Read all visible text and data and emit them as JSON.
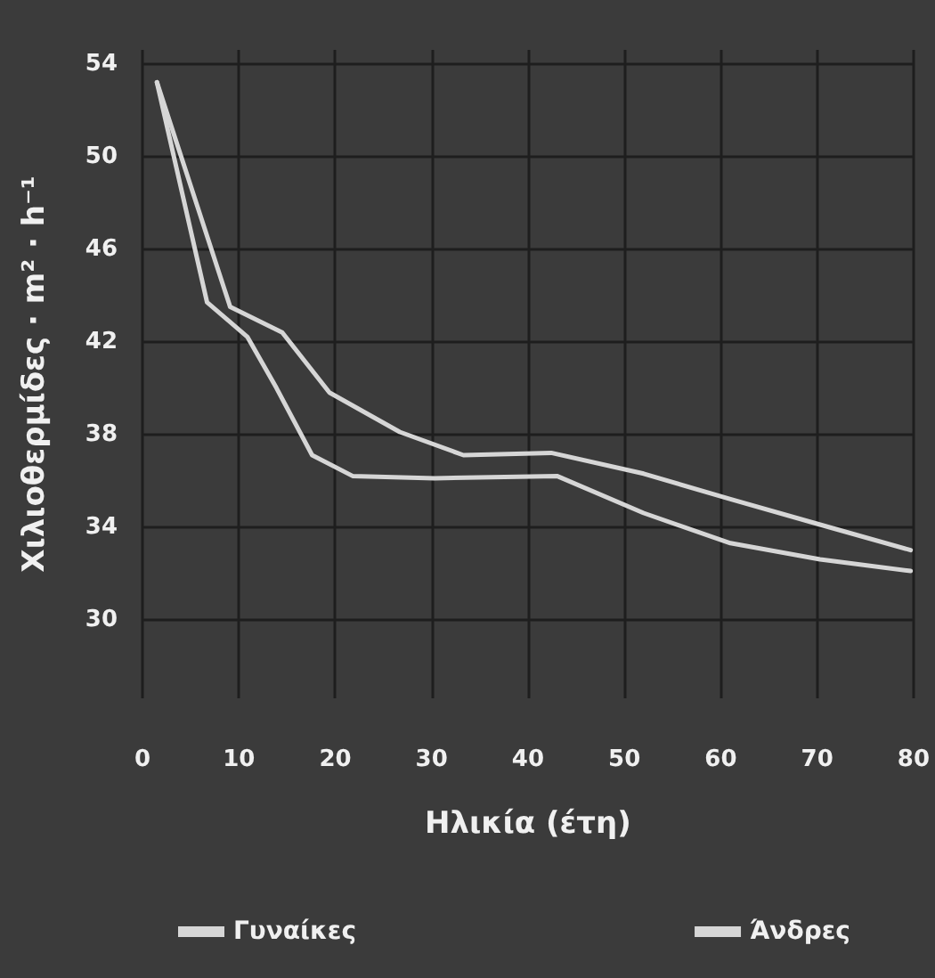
{
  "chart_data": {
    "type": "line",
    "xlabel": "Ηλικία (έτη)",
    "ylabel": "Χιλιοθερμίδες · m² · h⁻¹",
    "xlim": [
      0,
      80
    ],
    "xticks": [
      0,
      10,
      20,
      30,
      40,
      50,
      60,
      70,
      80
    ],
    "ylim": [
      26.6,
      54.6
    ],
    "yticks": [
      30,
      34,
      38,
      42,
      46,
      50,
      54
    ],
    "grid": true,
    "legend": "bottom",
    "marker": "none",
    "line_style": "solid",
    "series": [
      {
        "name": "Γυναίκες",
        "color": "#d6d6d6",
        "x": [
          1.5,
          6.7,
          10.9,
          13.9,
          17.6,
          21.8,
          30.3,
          43,
          52,
          61,
          70.3,
          79.7
        ],
        "values": [
          53.2,
          43.7,
          42.2,
          40,
          37.1,
          36.2,
          36.1,
          36.2,
          34.6,
          33.3,
          32.6,
          32.1
        ]
      },
      {
        "name": "Άνδρες",
        "color": "#d6d6d6",
        "x": [
          1.5,
          9.1,
          14.5,
          19.4,
          26.7,
          33.3,
          42.4,
          52,
          61,
          70.3,
          79.7
        ],
        "values": [
          53.2,
          43.5,
          42.4,
          39.8,
          38.1,
          37.1,
          37.2,
          36.3,
          35.2,
          34.1,
          33
        ]
      }
    ]
  }
}
